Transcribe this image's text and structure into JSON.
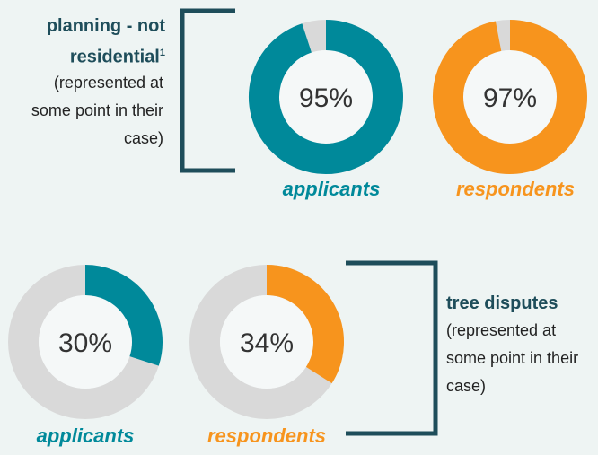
{
  "chart_data": [
    {
      "type": "donut",
      "title": "planning - not residential",
      "title_note": "1",
      "subtitle": "(represented at some point in their case)",
      "categories": [
        "applicants",
        "respondents"
      ],
      "values": [
        95,
        97
      ],
      "value_labels": [
        "95%",
        "97%"
      ],
      "colors": [
        "#00899a",
        "#f7941d"
      ],
      "track_color": "#d9d9d9"
    },
    {
      "type": "donut",
      "title": "tree disputes",
      "subtitle": "(represented at some point in their case)",
      "categories": [
        "applicants",
        "respondents"
      ],
      "values": [
        30,
        34
      ],
      "value_labels": [
        "30%",
        "34%"
      ],
      "colors": [
        "#00899a",
        "#f7941d"
      ],
      "track_color": "#d9d9d9"
    }
  ]
}
